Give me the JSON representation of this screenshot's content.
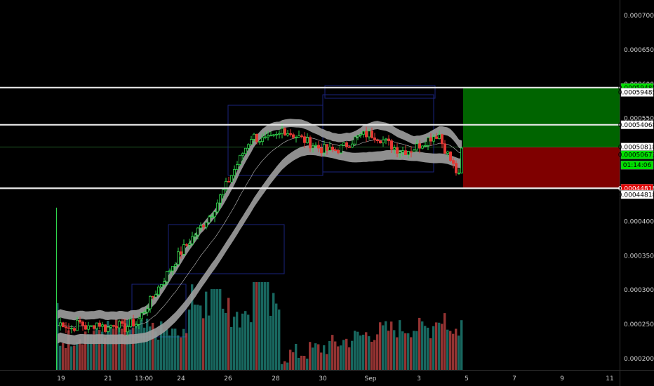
{
  "chart_data": {
    "type": "candlestick",
    "title": "",
    "ylim": [
      0.000185,
      0.000745
    ],
    "y_ticks": [
      "0.00070000",
      "0.00065000",
      "0.00060000",
      "0.00055000",
      "0.00050000",
      "0.00045000",
      "0.00040000",
      "0.00035000",
      "0.00030000",
      "0.00025000",
      "0.00020000"
    ],
    "x_ticks": [
      "19",
      "21",
      "13:00",
      "24",
      "26",
      "28",
      "30",
      "Sep",
      "3",
      "5",
      "7",
      "9",
      "11"
    ],
    "levels": [
      {
        "label": "0.00059485",
        "value": 0.00059485
      },
      {
        "label": "0.00054068",
        "value": 0.00054068
      },
      {
        "label": "0.00044818",
        "value": 0.00044818
      }
    ],
    "position": {
      "target": 0.00059485,
      "entry": 0.00050818,
      "stop": 0.00044818,
      "target_color": "#006400",
      "stop_color": "#7f0000"
    },
    "price_tags": [
      {
        "label": "0.00059485",
        "value": 0.00059485,
        "bg": "#00e000",
        "fg": "#000000"
      },
      {
        "label": "0.00059485",
        "value": 0.000588,
        "bg": "#ffffff",
        "fg": "#000000"
      },
      {
        "label": "0.00054068",
        "value": 0.00054068,
        "bg": "#ffffff",
        "fg": "#000000"
      },
      {
        "label": "0.00050818",
        "value": 0.00050818,
        "bg": "#ffffff",
        "fg": "#000000"
      },
      {
        "label": "0.00050673",
        "value": 0.000497,
        "bg": "#00e000",
        "fg": "#000000"
      },
      {
        "label": "01:14:06",
        "value": 0.000482,
        "bg": "#00e000",
        "fg": "#000000"
      },
      {
        "label": "0.00044818",
        "value": 0.00044818,
        "bg": "#e00000",
        "fg": "#ffffff"
      },
      {
        "label": "0.00044818",
        "value": 0.000439,
        "bg": "#ffffff",
        "fg": "#000000"
      }
    ],
    "last_price": 0.00050673,
    "countdown": "01:14:06",
    "colors": {
      "up": "#26a69a",
      "down": "#ef5350",
      "candle_up": "#2fd64c",
      "candle_down": "#e53935",
      "band": "#9e9e9e"
    }
  }
}
